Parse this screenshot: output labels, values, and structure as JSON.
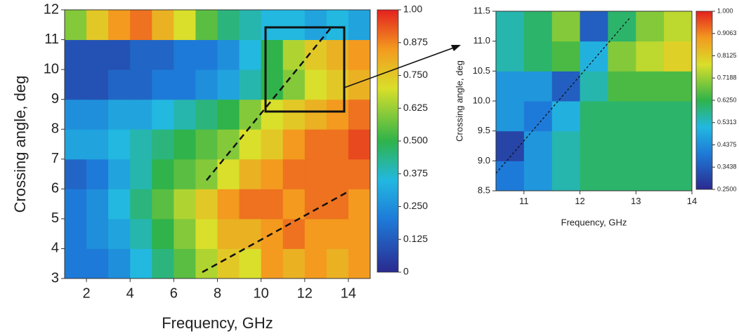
{
  "chart_data": [
    {
      "type": "heatmap",
      "x_label": "Frequency, GHz",
      "y_label": "Crossing angle, deg",
      "xlim": [
        1,
        15
      ],
      "xticks": [
        2,
        4,
        6,
        8,
        10,
        12,
        14
      ],
      "ylim": [
        3,
        12
      ],
      "yticks": [
        3,
        4,
        5,
        6,
        7,
        8,
        9,
        10,
        11,
        12
      ],
      "x": [
        1.5,
        2.5,
        3.5,
        4.5,
        5.5,
        6.5,
        7.5,
        8.5,
        9.5,
        10.5,
        11.5,
        12.5,
        13.5,
        14.5
      ],
      "y": [
        3.5,
        4.5,
        5.5,
        6.5,
        7.5,
        8.5,
        9.5,
        10.5,
        11.5
      ],
      "z": [
        [
          0.2,
          0.2,
          0.25,
          0.35,
          0.45,
          0.55,
          0.65,
          0.75,
          0.7,
          0.85,
          0.8,
          0.85,
          0.8,
          0.85
        ],
        [
          0.2,
          0.25,
          0.3,
          0.4,
          0.5,
          0.6,
          0.7,
          0.8,
          0.8,
          0.85,
          0.9,
          0.85,
          0.85,
          0.85
        ],
        [
          0.2,
          0.25,
          0.35,
          0.45,
          0.55,
          0.65,
          0.75,
          0.85,
          0.9,
          0.9,
          0.85,
          0.9,
          0.9,
          0.85
        ],
        [
          0.15,
          0.2,
          0.3,
          0.4,
          0.5,
          0.55,
          0.6,
          0.7,
          0.8,
          0.85,
          0.9,
          0.9,
          0.9,
          0.9
        ],
        [
          0.3,
          0.3,
          0.35,
          0.4,
          0.45,
          0.5,
          0.55,
          0.6,
          0.7,
          0.75,
          0.85,
          0.9,
          0.9,
          0.95
        ],
        [
          0.25,
          0.25,
          0.3,
          0.3,
          0.35,
          0.4,
          0.45,
          0.5,
          0.6,
          0.7,
          0.75,
          0.8,
          0.85,
          0.9
        ],
        [
          0.1,
          0.1,
          0.15,
          0.15,
          0.2,
          0.2,
          0.25,
          0.3,
          0.4,
          0.5,
          0.6,
          0.7,
          0.75,
          0.8
        ],
        [
          0.1,
          0.1,
          0.1,
          0.15,
          0.15,
          0.2,
          0.2,
          0.25,
          0.35,
          0.5,
          0.65,
          0.75,
          0.8,
          0.85
        ],
        [
          0.6,
          0.75,
          0.85,
          0.9,
          0.8,
          0.7,
          0.55,
          0.45,
          0.4,
          0.35,
          0.35,
          0.3,
          0.35,
          0.3
        ]
      ],
      "clim": [
        0,
        1
      ],
      "cticks": [
        0,
        0.125,
        {
          "value": 0.25,
          "label": "0.250"
        },
        0.375,
        {
          "value": 0.5,
          "label": "0.500"
        },
        0.625,
        {
          "value": 0.75,
          "label": "0.750"
        },
        0.875,
        {
          "value": 1,
          "label": "1.00"
        }
      ],
      "colormap": "jet"
    },
    {
      "type": "heatmap",
      "x_label": "Frequency, GHz",
      "y_label": "Crossing angle, deg",
      "xlim": [
        10.5,
        14
      ],
      "xticks": [
        11,
        12,
        13,
        14
      ],
      "ylim": [
        8.5,
        11.5
      ],
      "yticks": [
        8.5,
        {
          "value": 9,
          "label": "9.0"
        },
        9.5,
        {
          "value": 10,
          "label": "10.0"
        },
        10.5,
        {
          "value": 11,
          "label": "11.0"
        },
        11.5
      ],
      "x": [
        10.75,
        11.25,
        11.75,
        12.25,
        12.75,
        13.25,
        13.75
      ],
      "y": [
        8.75,
        9.25,
        9.75,
        10.25,
        10.75,
        11.25
      ],
      "z": [
        [
          0.4,
          0.45,
          0.55,
          0.6,
          0.6,
          0.6,
          0.6
        ],
        [
          0.3,
          0.45,
          0.55,
          0.6,
          0.6,
          0.6,
          0.6
        ],
        [
          0.45,
          0.4,
          0.5,
          0.6,
          0.6,
          0.6,
          0.6
        ],
        [
          0.45,
          0.45,
          0.35,
          0.55,
          0.65,
          0.65,
          0.65
        ],
        [
          0.55,
          0.6,
          0.65,
          0.5,
          0.7,
          0.75,
          0.8
        ],
        [
          0.55,
          0.6,
          0.7,
          0.35,
          0.6,
          0.7,
          0.75
        ]
      ],
      "clim": [
        0.25,
        1
      ],
      "cticks": [
        {
          "value": 0.25,
          "label": "0.2500"
        },
        0.3438,
        0.4375,
        0.5313,
        {
          "value": 0.625,
          "label": "0.6250"
        },
        0.7188,
        0.8125,
        0.9063,
        {
          "value": 1,
          "label": "1.000"
        }
      ],
      "colormap": "jet"
    }
  ]
}
